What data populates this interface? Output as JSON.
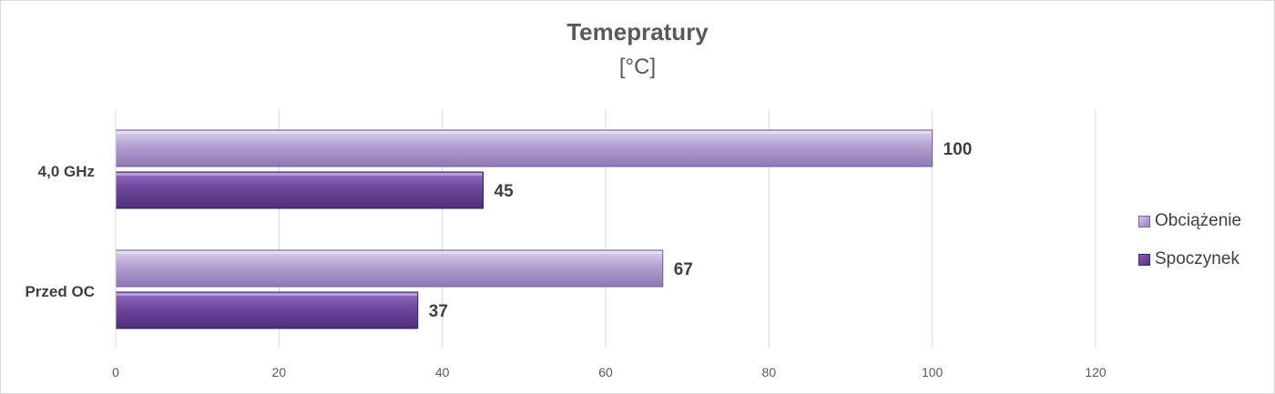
{
  "chart_data": {
    "type": "bar",
    "orientation": "horizontal",
    "title": "Temepratury",
    "subtitle": "[°C]",
    "categories": [
      "4,0 GHz",
      "Przed OC"
    ],
    "series": [
      {
        "name": "Obciążenie",
        "values": [
          100,
          67
        ],
        "color": "#a58fc6"
      },
      {
        "name": "Spoczynek",
        "values": [
          45,
          37
        ],
        "color": "#6b449a"
      }
    ],
    "xlim": [
      0,
      120
    ],
    "ticks": [
      0,
      20,
      40,
      60,
      80,
      100,
      120
    ],
    "grid": true,
    "legend_position": "right",
    "data_labels": true
  }
}
